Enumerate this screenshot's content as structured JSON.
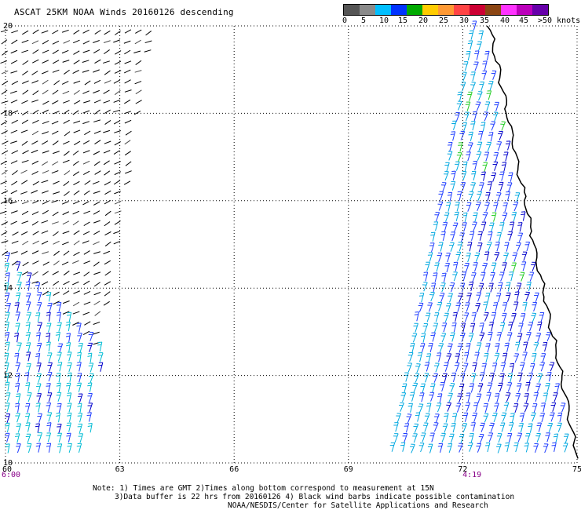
{
  "title": "ASCAT 25KM NOAA Winds 20160126 descending",
  "legend": {
    "colors": [
      "#555555",
      "#8a8a8a",
      "#00bfff",
      "#0033ff",
      "#00aa00",
      "#ffcc00",
      "#ff9933",
      "#ff4444",
      "#cc0033",
      "#8b4513",
      "#ff33ff",
      "#bb00bb",
      "#6600aa"
    ],
    "labels": [
      "0",
      "5",
      "10",
      "15",
      "20",
      "25",
      "30",
      "35",
      "40",
      "45",
      ">50 knots"
    ]
  },
  "map": {
    "lat_labels": [
      "20",
      "18",
      "16",
      "14",
      "12",
      "10"
    ],
    "lon_labels": [
      "60",
      "63",
      "66",
      "69",
      "72",
      "75"
    ],
    "lat_range": [
      10,
      20
    ],
    "lon_range": [
      60,
      75
    ],
    "grid": "dotted",
    "times": [
      {
        "label": "6:00",
        "lon": 60
      },
      {
        "label": "4:19",
        "lon": 72.2
      }
    ],
    "time_color": "#880088",
    "coastline_color": "#000000",
    "contamination_color": "#222222"
  },
  "note": {
    "line1": "Note: 1) Times are GMT 2)Times along bottom correspond to measurement at 15N",
    "line2": "3)Data buffer is 22 hrs from 20160126 4) Black wind barbs indicate possible contamination",
    "line3": "NOAA/NESDIS/Center for Satellite Applications and Research"
  }
}
